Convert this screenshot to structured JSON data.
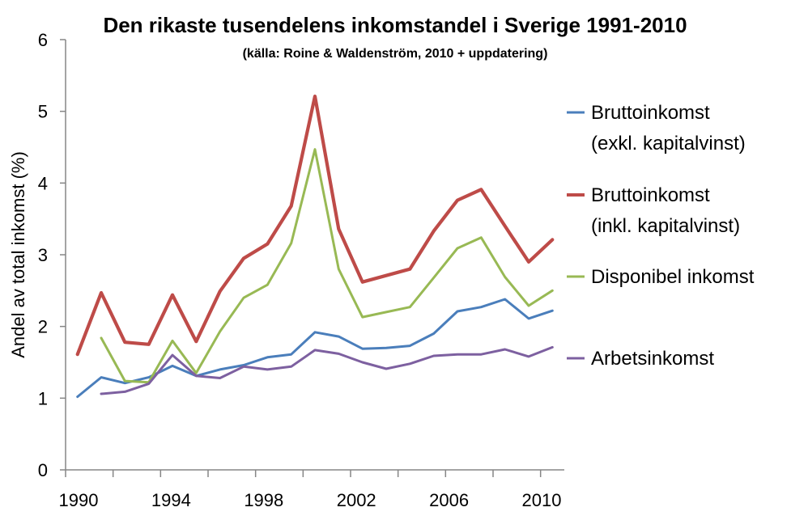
{
  "chart_data": {
    "type": "line",
    "title": "Den rikaste tusendelens inkomstandel i Sverige 1991-2010",
    "subtitle": "(källa: Roine & Waldenström, 2010 + uppdatering)",
    "xlabel": "",
    "ylabel": "Andel av total inkomst (%)",
    "ylim": [
      0,
      6
    ],
    "yticks": [
      "0",
      "1",
      "2",
      "3",
      "4",
      "5",
      "6"
    ],
    "xticks": [
      "1990",
      "1994",
      "1998",
      "2002",
      "2006",
      "2010"
    ],
    "grid": false,
    "legend_position": "right",
    "x": [
      1990,
      1991,
      1992,
      1993,
      1994,
      1995,
      1996,
      1997,
      1998,
      1999,
      2000,
      2001,
      2002,
      2003,
      2004,
      2005,
      2006,
      2007,
      2008,
      2009,
      2010
    ],
    "series": [
      {
        "name": "Bruttoinkomst",
        "name2": "(exkl. kapitalvinst)",
        "color": "#4A7EBB",
        "values": [
          1.02,
          1.29,
          1.21,
          1.29,
          1.45,
          1.31,
          1.4,
          1.46,
          1.57,
          1.61,
          1.92,
          1.86,
          1.69,
          1.7,
          1.73,
          1.9,
          2.21,
          2.27,
          2.38,
          2.11,
          2.22
        ]
      },
      {
        "name": "Bruttoinkomst",
        "name2": "(inkl. kapitalvinst)",
        "color": "#BE4B48",
        "values": [
          1.61,
          2.47,
          1.78,
          1.75,
          2.44,
          1.79,
          2.49,
          2.95,
          3.15,
          3.68,
          5.21,
          3.36,
          2.62,
          2.71,
          2.8,
          3.33,
          3.76,
          3.91,
          3.4,
          2.9,
          3.21
        ]
      },
      {
        "name": "Disponibel inkomst",
        "name2": "",
        "color": "#98B954",
        "values": [
          null,
          1.84,
          1.24,
          1.22,
          1.8,
          1.35,
          1.93,
          2.4,
          2.58,
          3.16,
          4.47,
          2.8,
          2.13,
          2.2,
          2.27,
          2.68,
          3.09,
          3.24,
          2.69,
          2.29,
          2.5
        ]
      },
      {
        "name": "Arbetsinkomst",
        "name2": "",
        "color": "#7D60A0",
        "values": [
          null,
          1.06,
          1.09,
          1.2,
          1.6,
          1.31,
          1.28,
          1.44,
          1.4,
          1.44,
          1.67,
          1.62,
          1.5,
          1.41,
          1.48,
          1.59,
          1.61,
          1.61,
          1.68,
          1.58,
          1.71
        ]
      }
    ]
  }
}
